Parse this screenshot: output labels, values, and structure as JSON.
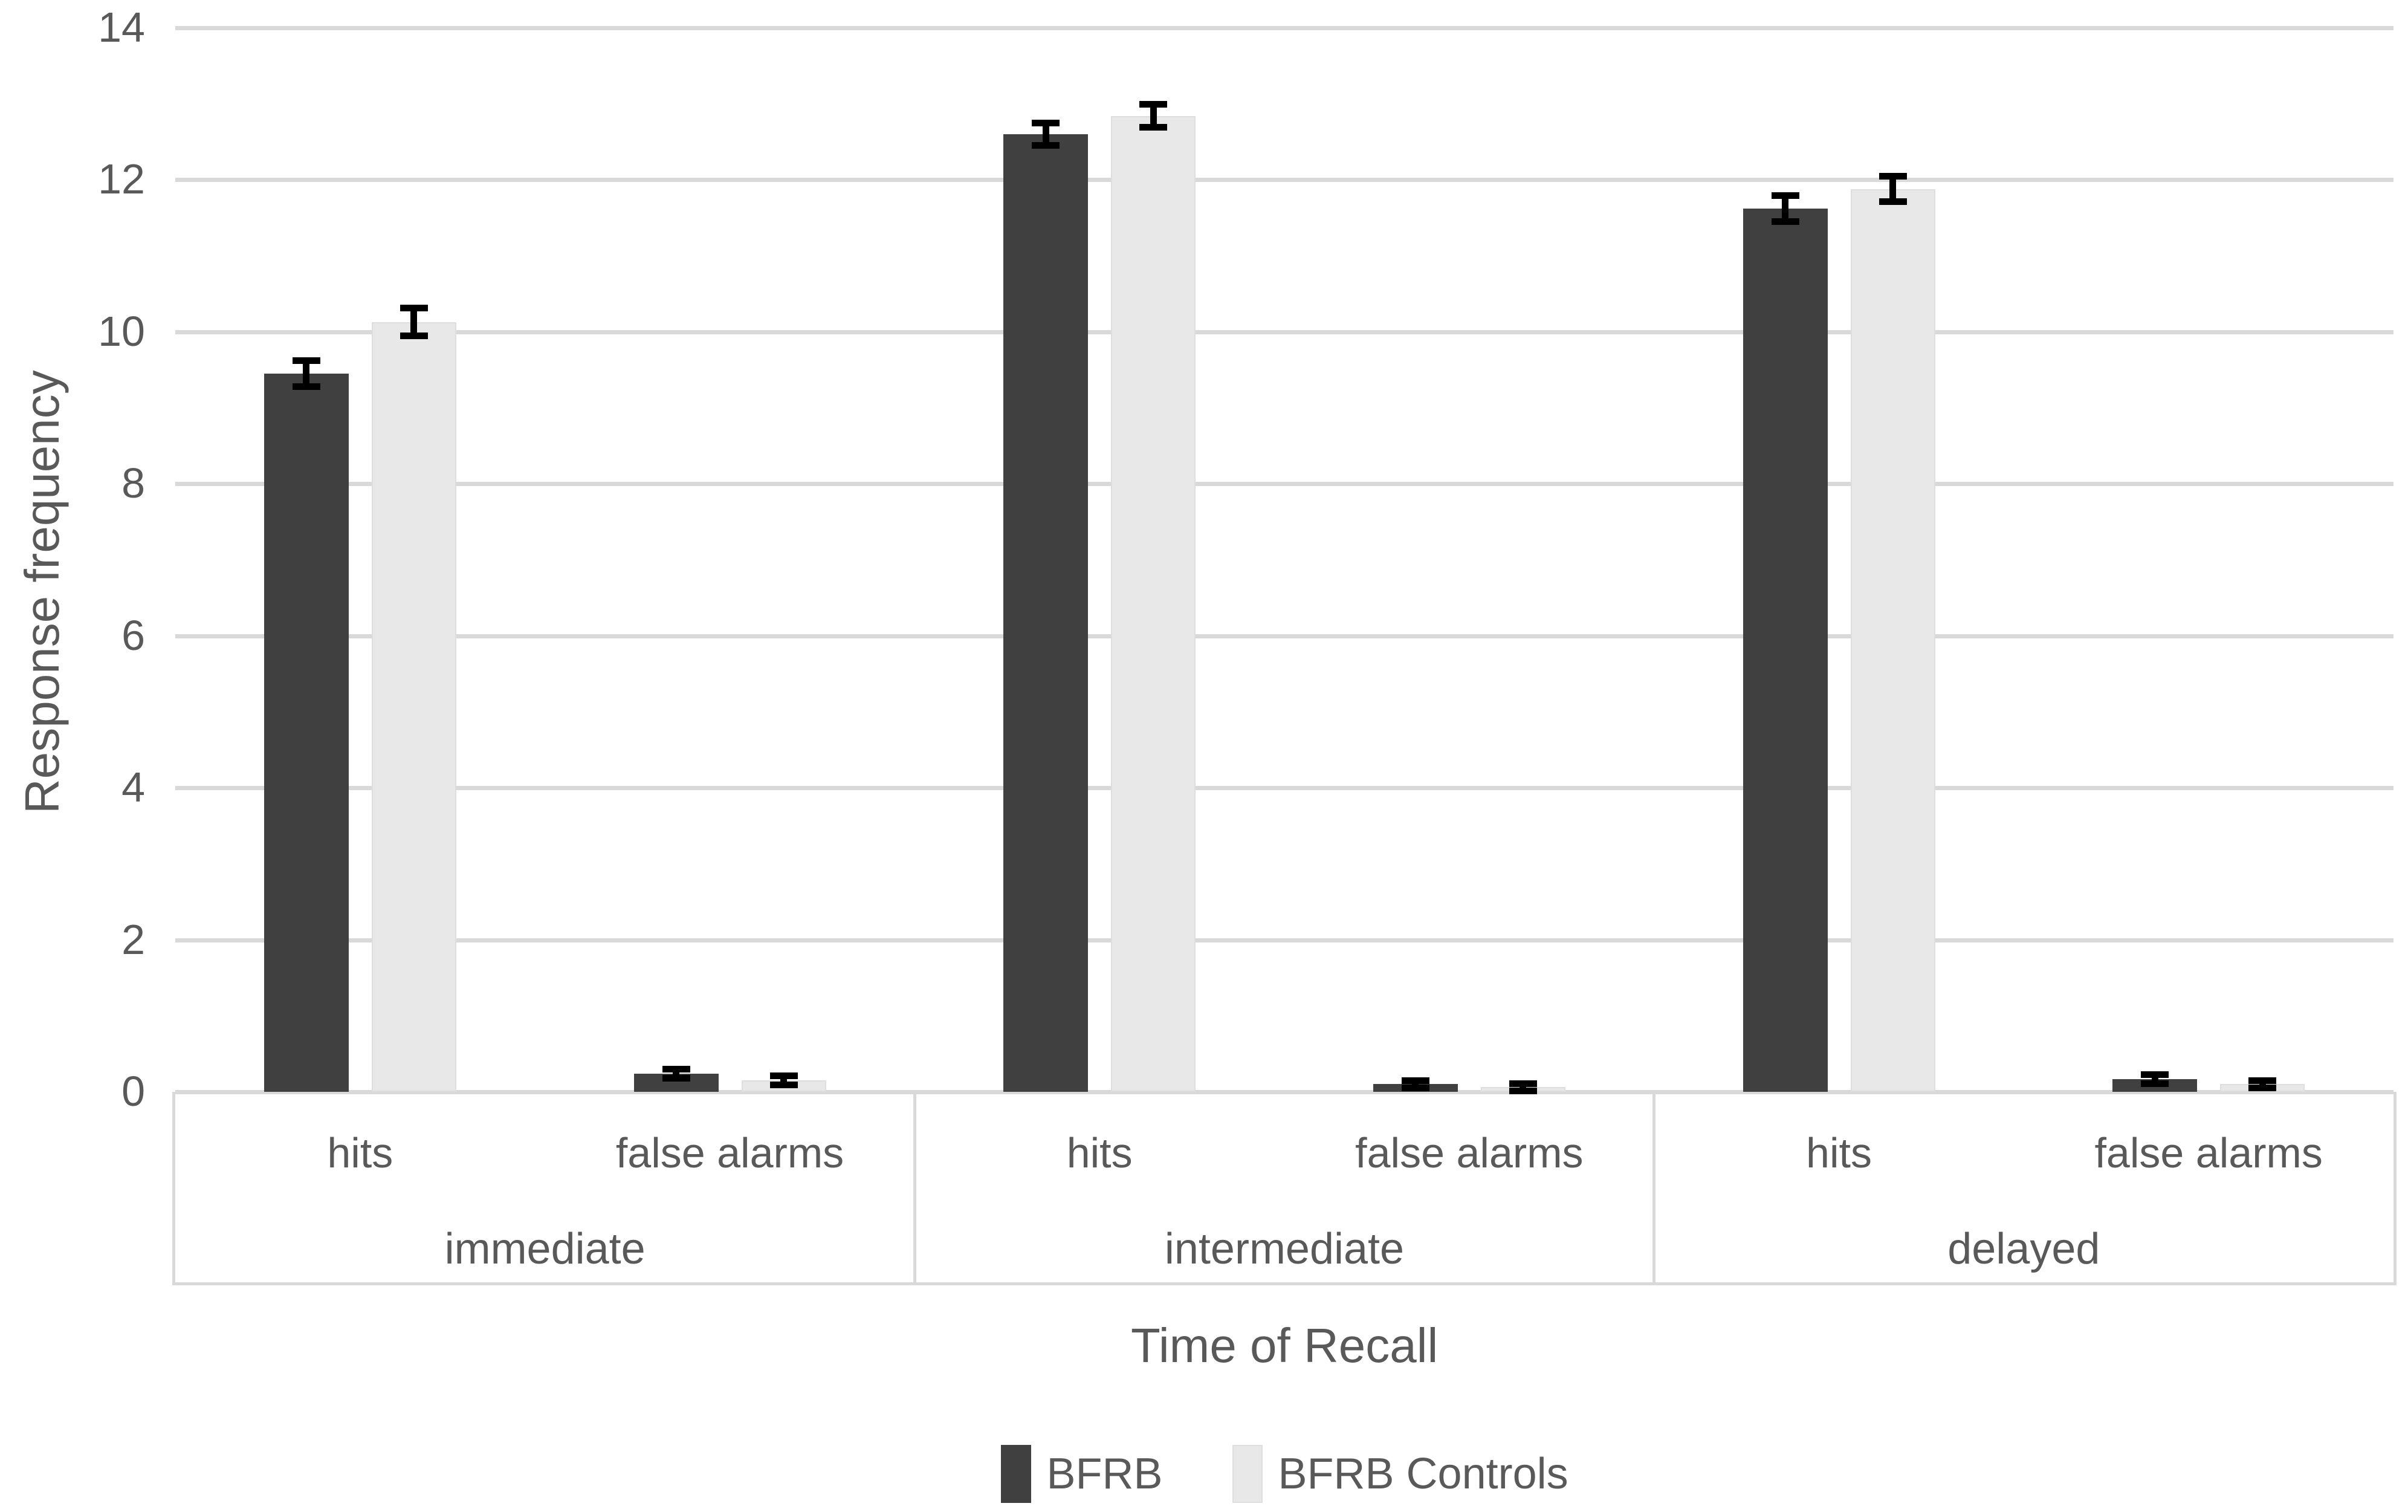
{
  "chart_data": {
    "type": "bar",
    "title": "",
    "ylabel": "Response frequency",
    "xlabel": "Time of Recall",
    "ylim": [
      0,
      14
    ],
    "ytick_step": 2,
    "yticks": [
      "0",
      "2",
      "4",
      "6",
      "8",
      "10",
      "12",
      "14"
    ],
    "grid": "horizontal",
    "legend_position": "bottom",
    "groups": [
      "immediate",
      "intermediate",
      "delayed"
    ],
    "categories_per_group": [
      "hits",
      "false alarms"
    ],
    "series": [
      {
        "name": "BFRB",
        "color": "#404040",
        "values": [
          9.45,
          0.24,
          12.6,
          0.1,
          11.62,
          0.17
        ],
        "errors": [
          0.17,
          0.06,
          0.15,
          0.05,
          0.17,
          0.06
        ]
      },
      {
        "name": "BFRB Controls",
        "color": "#e8e8e8",
        "values": [
          10.13,
          0.15,
          12.84,
          0.06,
          11.88,
          0.1
        ],
        "errors": [
          0.18,
          0.06,
          0.15,
          0.05,
          0.17,
          0.05
        ]
      }
    ],
    "error_bar_color": "#000000",
    "gridline_color": "#d9d9d9",
    "text_color": "#595959"
  }
}
